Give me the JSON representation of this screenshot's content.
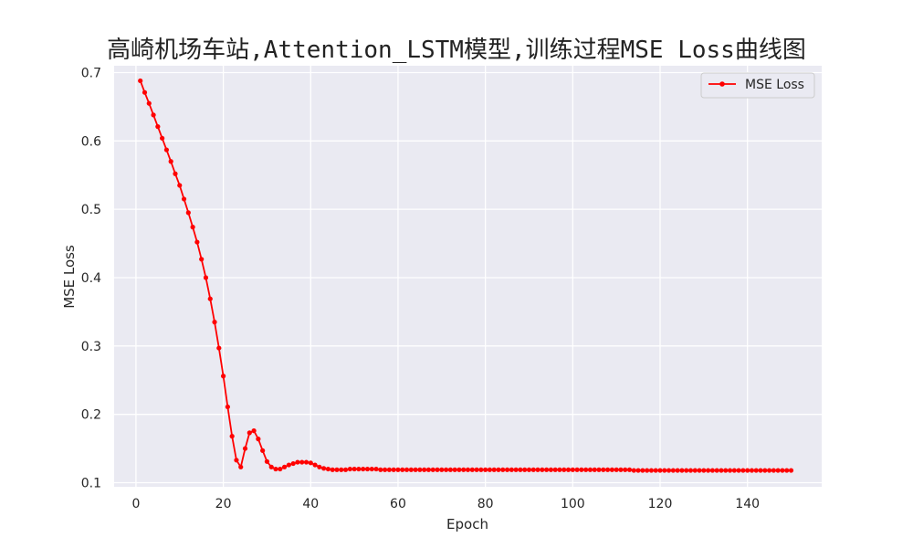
{
  "chart_data": {
    "type": "line",
    "title": "高崎机场车站,Attention_LSTM模型,训练过程MSE Loss曲线图",
    "xlabel": "Epoch",
    "ylabel": "MSE Loss",
    "xlim": [
      -5,
      157
    ],
    "ylim": [
      0.094,
      0.71
    ],
    "xticks": [
      0,
      20,
      40,
      60,
      80,
      100,
      120,
      140
    ],
    "yticks": [
      0.1,
      0.2,
      0.3,
      0.4,
      0.5,
      0.6,
      0.7
    ],
    "grid": true,
    "legend_position": "top-right",
    "series": [
      {
        "name": "MSE Loss",
        "color": "#ff0000",
        "marker": "circle",
        "x": [
          1,
          2,
          3,
          4,
          5,
          6,
          7,
          8,
          9,
          10,
          11,
          12,
          13,
          14,
          15,
          16,
          17,
          18,
          19,
          20,
          21,
          22,
          23,
          24,
          25,
          26,
          27,
          28,
          29,
          30,
          31,
          32,
          33,
          34,
          35,
          36,
          37,
          38,
          39,
          40,
          41,
          42,
          43,
          44,
          45,
          46,
          47,
          48,
          49,
          50,
          51,
          52,
          53,
          54,
          55,
          56,
          57,
          58,
          59,
          60,
          61,
          62,
          63,
          64,
          65,
          66,
          67,
          68,
          69,
          70,
          71,
          72,
          73,
          74,
          75,
          76,
          77,
          78,
          79,
          80,
          81,
          82,
          83,
          84,
          85,
          86,
          87,
          88,
          89,
          90,
          91,
          92,
          93,
          94,
          95,
          96,
          97,
          98,
          99,
          100,
          101,
          102,
          103,
          104,
          105,
          106,
          107,
          108,
          109,
          110,
          111,
          112,
          113,
          114,
          115,
          116,
          117,
          118,
          119,
          120,
          121,
          122,
          123,
          124,
          125,
          126,
          127,
          128,
          129,
          130,
          131,
          132,
          133,
          134,
          135,
          136,
          137,
          138,
          139,
          140,
          141,
          142,
          143,
          144,
          145,
          146,
          147,
          148,
          149,
          150
        ],
        "values": [
          0.688,
          0.671,
          0.655,
          0.638,
          0.621,
          0.604,
          0.587,
          0.57,
          0.552,
          0.535,
          0.515,
          0.495,
          0.474,
          0.452,
          0.427,
          0.4,
          0.369,
          0.335,
          0.297,
          0.256,
          0.211,
          0.168,
          0.133,
          0.123,
          0.15,
          0.173,
          0.176,
          0.164,
          0.147,
          0.131,
          0.123,
          0.12,
          0.12,
          0.123,
          0.126,
          0.128,
          0.13,
          0.13,
          0.13,
          0.129,
          0.126,
          0.123,
          0.121,
          0.12,
          0.119,
          0.119,
          0.119,
          0.119,
          0.12,
          0.12,
          0.12,
          0.12,
          0.12,
          0.12,
          0.12,
          0.119,
          0.119,
          0.119,
          0.119,
          0.119,
          0.119,
          0.119,
          0.119,
          0.119,
          0.119,
          0.119,
          0.119,
          0.119,
          0.119,
          0.119,
          0.119,
          0.119,
          0.119,
          0.119,
          0.119,
          0.119,
          0.119,
          0.119,
          0.119,
          0.119,
          0.119,
          0.119,
          0.119,
          0.119,
          0.119,
          0.119,
          0.119,
          0.119,
          0.119,
          0.119,
          0.119,
          0.119,
          0.119,
          0.119,
          0.119,
          0.119,
          0.119,
          0.119,
          0.119,
          0.119,
          0.119,
          0.119,
          0.119,
          0.119,
          0.119,
          0.119,
          0.119,
          0.119,
          0.119,
          0.119,
          0.119,
          0.119,
          0.119,
          0.118,
          0.118,
          0.118,
          0.118,
          0.118,
          0.118,
          0.118,
          0.118,
          0.118,
          0.118,
          0.118,
          0.118,
          0.118,
          0.118,
          0.118,
          0.118,
          0.118,
          0.118,
          0.118,
          0.118,
          0.118,
          0.118,
          0.118,
          0.118,
          0.118,
          0.118,
          0.118,
          0.118,
          0.118,
          0.118,
          0.118,
          0.118,
          0.118,
          0.118,
          0.118,
          0.118,
          0.118
        ]
      }
    ]
  }
}
